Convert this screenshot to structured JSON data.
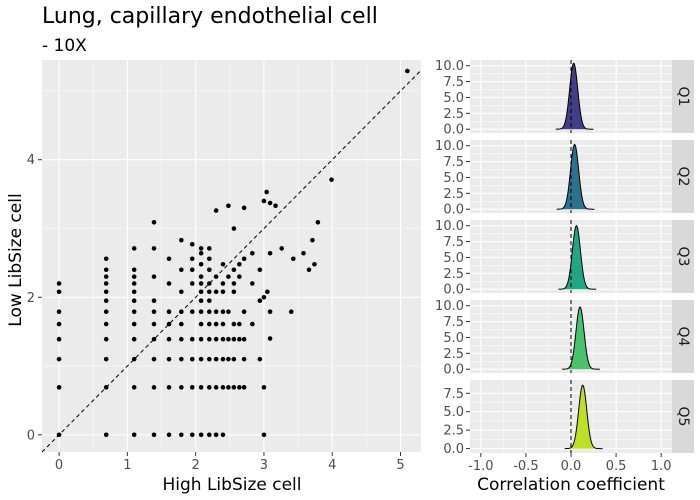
{
  "title": "Lung, capillary endothelial cell",
  "subtitle": "- 10X",
  "chart_data": [
    {
      "type": "scatter",
      "xlabel": "High LibSize cell",
      "ylabel": "Low LibSize cell",
      "xlim": [
        -0.25,
        5.3
      ],
      "ylim": [
        -0.25,
        5.45
      ],
      "xticks": [
        0,
        1,
        2,
        3,
        4,
        5
      ],
      "yticks": [
        0,
        2,
        4
      ],
      "reference_line": "y = x (dashed)",
      "grid": true,
      "points": [
        [
          0,
          0
        ],
        [
          0,
          0.69
        ],
        [
          0,
          1.1
        ],
        [
          0,
          1.39
        ],
        [
          0,
          1.61
        ],
        [
          0,
          1.79
        ],
        [
          0,
          2.08
        ],
        [
          0,
          2.2
        ],
        [
          0.69,
          0
        ],
        [
          0.69,
          0.69
        ],
        [
          0.69,
          1.1
        ],
        [
          0.69,
          1.39
        ],
        [
          0.69,
          1.61
        ],
        [
          0.69,
          1.79
        ],
        [
          0.69,
          1.95
        ],
        [
          0.69,
          2.08
        ],
        [
          0.69,
          2.2
        ],
        [
          0.69,
          2.3
        ],
        [
          0.69,
          2.4
        ],
        [
          0.69,
          2.56
        ],
        [
          1.1,
          0
        ],
        [
          1.1,
          0.69
        ],
        [
          1.1,
          1.1
        ],
        [
          1.1,
          1.39
        ],
        [
          1.1,
          1.61
        ],
        [
          1.1,
          1.79
        ],
        [
          1.1,
          1.95
        ],
        [
          1.1,
          2.08
        ],
        [
          1.1,
          2.2
        ],
        [
          1.1,
          2.3
        ],
        [
          1.1,
          2.4
        ],
        [
          1.1,
          2.71
        ],
        [
          1.39,
          0
        ],
        [
          1.39,
          0.69
        ],
        [
          1.39,
          1.1
        ],
        [
          1.39,
          1.39
        ],
        [
          1.39,
          1.61
        ],
        [
          1.39,
          1.79
        ],
        [
          1.39,
          1.95
        ],
        [
          1.39,
          2.3
        ],
        [
          1.39,
          2.71
        ],
        [
          1.39,
          3.09
        ],
        [
          1.61,
          0
        ],
        [
          1.61,
          0.69
        ],
        [
          1.61,
          1.1
        ],
        [
          1.61,
          1.39
        ],
        [
          1.61,
          1.61
        ],
        [
          1.61,
          1.79
        ],
        [
          1.61,
          2.2
        ],
        [
          1.61,
          2.56
        ],
        [
          1.79,
          0
        ],
        [
          1.79,
          0.69
        ],
        [
          1.79,
          1.1
        ],
        [
          1.79,
          1.39
        ],
        [
          1.79,
          1.61
        ],
        [
          1.79,
          1.79
        ],
        [
          1.79,
          2.08
        ],
        [
          1.79,
          2.4
        ],
        [
          1.79,
          2.83
        ],
        [
          1.95,
          0
        ],
        [
          1.95,
          0.69
        ],
        [
          1.95,
          1.1
        ],
        [
          1.95,
          1.39
        ],
        [
          1.95,
          1.79
        ],
        [
          1.95,
          2.2
        ],
        [
          1.95,
          2.4
        ],
        [
          1.95,
          2.56
        ],
        [
          1.95,
          2.77
        ],
        [
          2.08,
          0
        ],
        [
          2.08,
          0.69
        ],
        [
          2.08,
          1.1
        ],
        [
          2.08,
          1.39
        ],
        [
          2.08,
          1.61
        ],
        [
          2.08,
          1.79
        ],
        [
          2.08,
          1.95
        ],
        [
          2.08,
          2.08
        ],
        [
          2.08,
          2.2
        ],
        [
          2.08,
          2.3
        ],
        [
          2.08,
          2.48
        ],
        [
          2.08,
          2.64
        ],
        [
          2.08,
          2.71
        ],
        [
          2.2,
          0
        ],
        [
          2.2,
          0.69
        ],
        [
          2.2,
          1.1
        ],
        [
          2.2,
          1.39
        ],
        [
          2.2,
          1.61
        ],
        [
          2.2,
          1.79
        ],
        [
          2.2,
          1.95
        ],
        [
          2.2,
          2.08
        ],
        [
          2.2,
          2.2
        ],
        [
          2.2,
          2.4
        ],
        [
          2.2,
          2.56
        ],
        [
          2.2,
          2.71
        ],
        [
          2.3,
          0
        ],
        [
          2.3,
          0.69
        ],
        [
          2.3,
          1.1
        ],
        [
          2.3,
          1.39
        ],
        [
          2.3,
          1.61
        ],
        [
          2.3,
          1.79
        ],
        [
          2.3,
          2.08
        ],
        [
          2.3,
          2.3
        ],
        [
          2.3,
          3.26
        ],
        [
          2.4,
          0
        ],
        [
          2.4,
          0.69
        ],
        [
          2.4,
          1.1
        ],
        [
          2.4,
          1.39
        ],
        [
          2.4,
          1.61
        ],
        [
          2.4,
          1.79
        ],
        [
          2.4,
          2.08
        ],
        [
          2.4,
          2.2
        ],
        [
          2.4,
          2.48
        ],
        [
          2.48,
          0.69
        ],
        [
          2.48,
          1.1
        ],
        [
          2.48,
          1.39
        ],
        [
          2.48,
          1.79
        ],
        [
          2.48,
          2.3
        ],
        [
          2.48,
          3.33
        ],
        [
          2.56,
          0.69
        ],
        [
          2.56,
          1.1
        ],
        [
          2.56,
          1.39
        ],
        [
          2.56,
          1.61
        ],
        [
          2.56,
          2.08
        ],
        [
          2.56,
          2.2
        ],
        [
          2.56,
          2.4
        ],
        [
          2.56,
          3.0
        ],
        [
          2.64,
          0.69
        ],
        [
          2.64,
          1.39
        ],
        [
          2.64,
          1.61
        ],
        [
          2.64,
          2.3
        ],
        [
          2.64,
          2.48
        ],
        [
          2.71,
          0.69
        ],
        [
          2.71,
          1.1
        ],
        [
          2.71,
          1.39
        ],
        [
          2.71,
          1.79
        ],
        [
          2.71,
          2.56
        ],
        [
          2.71,
          3.3
        ],
        [
          2.83,
          1.61
        ],
        [
          2.83,
          2.2
        ],
        [
          2.83,
          2.64
        ],
        [
          2.94,
          1.1
        ],
        [
          2.94,
          1.95
        ],
        [
          2.94,
          2.4
        ],
        [
          3.0,
          0
        ],
        [
          3.0,
          0.69
        ],
        [
          3.0,
          2.0
        ],
        [
          3.0,
          3.4
        ],
        [
          3.04,
          3.53
        ],
        [
          3.05,
          2.08
        ],
        [
          3.09,
          1.79
        ],
        [
          3.09,
          1.4
        ],
        [
          3.09,
          2.64
        ],
        [
          3.09,
          3.37
        ],
        [
          3.17,
          3.33
        ],
        [
          3.26,
          2.71
        ],
        [
          3.4,
          1.79
        ],
        [
          3.43,
          2.56
        ],
        [
          3.58,
          2.64
        ],
        [
          3.66,
          2.4
        ],
        [
          3.71,
          2.83
        ],
        [
          3.74,
          2.48
        ],
        [
          3.79,
          3.09
        ],
        [
          3.99,
          3.71
        ],
        [
          5.1,
          5.29
        ]
      ]
    },
    {
      "type": "area",
      "facets": [
        "Q1",
        "Q2",
        "Q3",
        "Q4",
        "Q5"
      ],
      "xlabel": "Correlation coefficient",
      "xlim": [
        -1.12,
        1.12
      ],
      "xticks": [
        -1.0,
        -0.5,
        0.0,
        0.5,
        1.0
      ],
      "xtick_labels": [
        "-1.0",
        "-0.5",
        "0.0",
        "0.5",
        "1.0"
      ],
      "vline_x": 0,
      "series": [
        {
          "name": "Q1",
          "center": 0.03,
          "peak": 10.4,
          "ylim": [
            -0.6,
            10.9
          ],
          "yticks": [
            0,
            2.5,
            5,
            7.5,
            10
          ],
          "ytick_labels": [
            "0.0",
            "2.5",
            "5.0",
            "7.5",
            "10.0"
          ],
          "fill": "#433e85"
        },
        {
          "name": "Q2",
          "center": 0.04,
          "peak": 10.2,
          "ylim": [
            -0.6,
            10.9
          ],
          "yticks": [
            0,
            2.5,
            5,
            7.5,
            10
          ],
          "ytick_labels": [
            "0.0",
            "2.5",
            "5.0",
            "7.5",
            "10.0"
          ],
          "fill": "#2c728e"
        },
        {
          "name": "Q3",
          "center": 0.06,
          "peak": 10.0,
          "ylim": [
            -0.6,
            10.9
          ],
          "yticks": [
            0,
            2.5,
            5,
            7.5,
            10
          ],
          "ytick_labels": [
            "0.0",
            "2.5",
            "5.0",
            "7.5",
            "10.0"
          ],
          "fill": "#21a685"
        },
        {
          "name": "Q4",
          "center": 0.1,
          "peak": 9.8,
          "ylim": [
            -0.6,
            10.9
          ],
          "yticks": [
            0,
            2.5,
            5,
            7.5,
            10
          ],
          "ytick_labels": [
            "0.0",
            "2.5",
            "5.0",
            "7.5",
            "10.0"
          ],
          "fill": "#4ac16d"
        },
        {
          "name": "Q5",
          "center": 0.13,
          "peak": 8.6,
          "ylim": [
            -0.6,
            9.3
          ],
          "yticks": [
            0,
            2.5,
            5,
            7.5
          ],
          "ytick_labels": [
            "0.0",
            "2.5",
            "5.0",
            "7.5"
          ],
          "fill": "#bddf26"
        }
      ]
    }
  ]
}
